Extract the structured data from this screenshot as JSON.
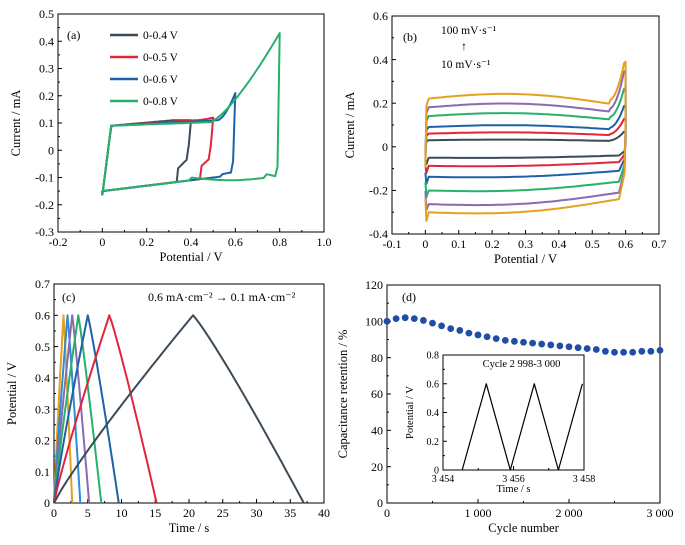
{
  "colors": {
    "axis": "#000000",
    "dark_gray": "#3d4a57",
    "red": "#e0263c",
    "blue": "#1d62a8",
    "green": "#27b06a",
    "purple": "#8a6ab0",
    "orange": "#e6a020",
    "dot_blue": "#1f4ea6"
  },
  "chart_data": [
    {
      "panel": "(a)",
      "type": "line",
      "xlabel": "Potential / V",
      "ylabel": "Current / mA",
      "xlim": [
        -0.2,
        1.0
      ],
      "ylim": [
        -0.3,
        0.5
      ],
      "xticks": [
        "-0.2",
        "0",
        "0.2",
        "0.4",
        "0.6",
        "0.8",
        "1.0"
      ],
      "yticks": [
        "-0.3",
        "-0.2",
        "-0.1",
        "0",
        "0.1",
        "0.2",
        "0.3",
        "0.4",
        "0.5"
      ],
      "legend_position": "top-left",
      "series": [
        {
          "name": "0-0.4 V",
          "color": "#3d4a57",
          "vmax": 0.4,
          "ipeak": 0.11
        },
        {
          "name": "0-0.5 V",
          "color": "#e0263c",
          "vmax": 0.5,
          "ipeak": 0.12
        },
        {
          "name": "0-0.6 V",
          "color": "#1d62a8",
          "vmax": 0.6,
          "ipeak": 0.21
        },
        {
          "name": "0-0.8 V",
          "color": "#27b06a",
          "vmax": 0.8,
          "ipeak": 0.43
        }
      ]
    },
    {
      "panel": "(b)",
      "type": "line",
      "xlabel": "Potential / V",
      "ylabel": "Current / mA",
      "xlim": [
        -0.1,
        0.7
      ],
      "ylim": [
        -0.4,
        0.6
      ],
      "xticks": [
        "-0.1",
        "0",
        "0.1",
        "0.2",
        "0.3",
        "0.4",
        "0.5",
        "0.6",
        "0.7"
      ],
      "yticks": [
        "-0.4",
        "-0.2",
        "0",
        "0.2",
        "0.4",
        "0.6"
      ],
      "annotation_top": "100 mV·s⁻¹",
      "annotation_arrow": "↑",
      "annotation_bottom": "10 mV·s⁻¹",
      "series": [
        {
          "color": "#3d4a57",
          "top": 0.03,
          "bottom": -0.04,
          "peak": 0.07,
          "trough": -0.08
        },
        {
          "color": "#e0263c",
          "top": 0.06,
          "bottom": -0.07,
          "peak": 0.13,
          "trough": -0.12
        },
        {
          "color": "#1d62a8",
          "top": 0.09,
          "bottom": -0.11,
          "peak": 0.19,
          "trough": -0.17
        },
        {
          "color": "#27b06a",
          "top": 0.14,
          "bottom": -0.16,
          "peak": 0.27,
          "trough": -0.23
        },
        {
          "color": "#8a6ab0",
          "top": 0.18,
          "bottom": -0.21,
          "peak": 0.35,
          "trough": -0.29
        },
        {
          "color": "#e6a020",
          "top": 0.22,
          "bottom": -0.24,
          "peak": 0.39,
          "trough": -0.34
        }
      ]
    },
    {
      "panel": "(c)",
      "type": "line",
      "xlabel": "Time / s",
      "ylabel": "Potential / V",
      "xlim": [
        0,
        40
      ],
      "ylim": [
        0,
        0.7
      ],
      "xticks": [
        "0",
        "5",
        "10",
        "15",
        "20",
        "25",
        "30",
        "35",
        "40"
      ],
      "yticks": [
        "0",
        "0.1",
        "0.2",
        "0.3",
        "0.4",
        "0.5",
        "0.6",
        "0.7"
      ],
      "annotation": "0.6 mA·cm⁻² → 0.1 mA·cm⁻²",
      "series": [
        {
          "color": "#3d4a57",
          "t_peak": 20.6,
          "t_end": 37.0
        },
        {
          "color": "#e0263c",
          "t_peak": 8.2,
          "t_end": 15.2
        },
        {
          "color": "#1d62a8",
          "t_peak": 5.0,
          "t_end": 9.6
        },
        {
          "color": "#27b06a",
          "t_peak": 3.6,
          "t_end": 7.0
        },
        {
          "color": "#8a6ab0",
          "t_peak": 2.7,
          "t_end": 5.2
        },
        {
          "color": "#2e8bd6",
          "t_peak": 2.0,
          "t_end": 3.9
        },
        {
          "color": "#e6a020",
          "t_peak": 1.4,
          "t_end": 2.7
        }
      ]
    },
    {
      "panel": "(d)",
      "type": "scatter",
      "xlabel": "Cycle number",
      "ylabel": "Capacitance retention / %",
      "xlim": [
        0,
        3000
      ],
      "ylim": [
        0,
        120
      ],
      "xticks": [
        "0",
        "1 000",
        "2 000",
        "3 000"
      ],
      "yticks": [
        "0",
        "20",
        "40",
        "60",
        "80",
        "100",
        "120"
      ],
      "x": [
        0,
        100,
        200,
        300,
        400,
        500,
        600,
        700,
        800,
        900,
        1000,
        1100,
        1200,
        1300,
        1400,
        1500,
        1600,
        1700,
        1800,
        1900,
        2000,
        2100,
        2200,
        2300,
        2400,
        2500,
        2600,
        2700,
        2800,
        2900,
        3000
      ],
      "values": [
        100,
        101.5,
        102,
        101.5,
        100.5,
        99,
        97.5,
        96,
        95,
        93.5,
        92.5,
        91.5,
        90.5,
        89.5,
        89,
        88.5,
        88,
        87.5,
        87,
        86.5,
        86,
        85.5,
        85,
        84.5,
        83.5,
        83,
        83,
        83,
        83.5,
        83.5,
        84
      ],
      "inset": {
        "title": "Cycle 2 998-3 000",
        "xlabel": "Time / s",
        "ylabel": "Potential / V",
        "xlim": [
          3453.6,
          3458.0
        ],
        "ylim": [
          0,
          0.8
        ],
        "xticks": [
          "3 454",
          "3 456",
          "3 458"
        ],
        "yticks": [
          "0",
          "0.2",
          "0.4",
          "0.6",
          "0.8"
        ],
        "x": [
          3454.2,
          3454.95,
          3455.7,
          3456.45,
          3457.2,
          3457.95
        ],
        "values": [
          0,
          0.6,
          0,
          0.6,
          0,
          0.6
        ]
      }
    }
  ]
}
